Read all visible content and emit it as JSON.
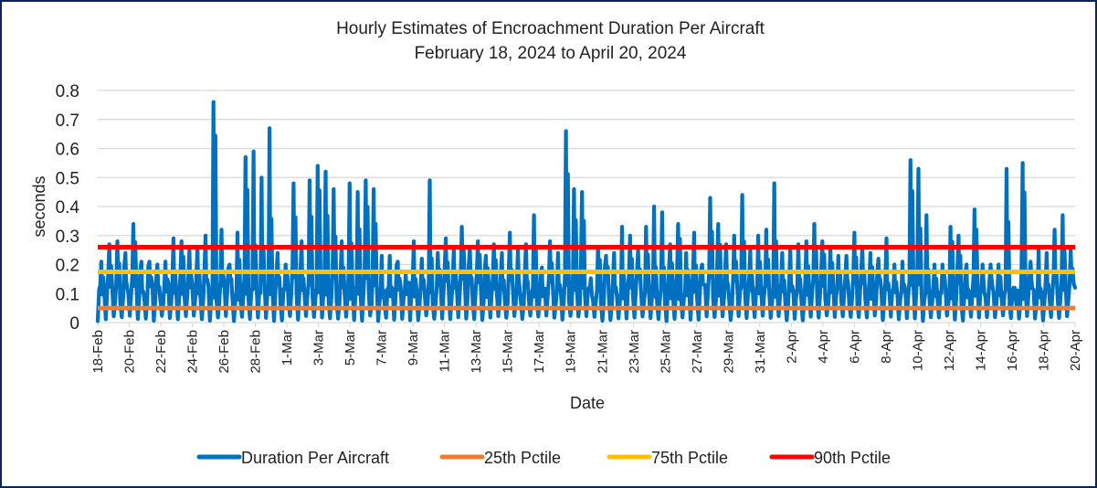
{
  "chart_data": {
    "type": "line",
    "title": "Hourly Estimates of Encroachment Duration Per Aircraft",
    "subtitle": "February 18, 2024 to April 20, 2024",
    "xlabel": "Date",
    "ylabel": "seconds",
    "ylim": [
      0,
      0.8
    ],
    "yticks": [
      "0",
      "0.1",
      "0.2",
      "0.3",
      "0.4",
      "0.5",
      "0.6",
      "0.7",
      "0.8"
    ],
    "xlim_days": [
      0,
      62
    ],
    "xticks": [
      {
        "day": 0,
        "label": "18-Feb"
      },
      {
        "day": 2,
        "label": "20-Feb"
      },
      {
        "day": 4,
        "label": "22-Feb"
      },
      {
        "day": 6,
        "label": "24-Feb"
      },
      {
        "day": 8,
        "label": "26-Feb"
      },
      {
        "day": 10,
        "label": "28-Feb"
      },
      {
        "day": 12,
        "label": "1-Mar"
      },
      {
        "day": 14,
        "label": "3-Mar"
      },
      {
        "day": 16,
        "label": "5-Mar"
      },
      {
        "day": 18,
        "label": "7-Mar"
      },
      {
        "day": 20,
        "label": "9-Mar"
      },
      {
        "day": 22,
        "label": "11-Mar"
      },
      {
        "day": 24,
        "label": "13-Mar"
      },
      {
        "day": 26,
        "label": "15-Mar"
      },
      {
        "day": 28,
        "label": "17-Mar"
      },
      {
        "day": 30,
        "label": "19-Mar"
      },
      {
        "day": 32,
        "label": "21-Mar"
      },
      {
        "day": 34,
        "label": "23-Mar"
      },
      {
        "day": 36,
        "label": "25-Mar"
      },
      {
        "day": 38,
        "label": "27-Mar"
      },
      {
        "day": 40,
        "label": "29-Mar"
      },
      {
        "day": 42,
        "label": "31-Mar"
      },
      {
        "day": 44,
        "label": "2-Apr"
      },
      {
        "day": 46,
        "label": "4-Apr"
      },
      {
        "day": 48,
        "label": "6-Apr"
      },
      {
        "day": 50,
        "label": "8-Apr"
      },
      {
        "day": 52,
        "label": "10-Apr"
      },
      {
        "day": 54,
        "label": "12-Apr"
      },
      {
        "day": 56,
        "label": "14-Apr"
      },
      {
        "day": 58,
        "label": "16-Apr"
      },
      {
        "day": 60,
        "label": "18-Apr"
      },
      {
        "day": 62,
        "label": "20-Apr"
      }
    ],
    "grid": true,
    "legend_position": "bottom",
    "series": [
      {
        "name": "Duration Per Aircraft",
        "color": "#0070c0",
        "note": "hourly values approximated as per-day peak/mid/trough profile read from chart",
        "daily_peaks": [
          0.21,
          0.27,
          0.28,
          0.24,
          0.34,
          0.21,
          0.21,
          0.2,
          0.21,
          0.29,
          0.28,
          0.25,
          0.26,
          0.3,
          0.76,
          0.32,
          0.2,
          0.31,
          0.57,
          0.59,
          0.5,
          0.67,
          0.24,
          0.2,
          0.48,
          0.28,
          0.49,
          0.54,
          0.52,
          0.46,
          0.28,
          0.48,
          0.45,
          0.49,
          0.46,
          0.23,
          0.23,
          0.21,
          0.17,
          0.28,
          0.22,
          0.49,
          0.24,
          0.29,
          0.25,
          0.33,
          0.26,
          0.28,
          0.23,
          0.27,
          0.24,
          0.31,
          0.25,
          0.27,
          0.37,
          0.19,
          0.28,
          0.24,
          0.66,
          0.46,
          0.45,
          0.12,
          0.26,
          0.23,
          0.24,
          0.33,
          0.3,
          0.25,
          0.33,
          0.4,
          0.38,
          0.27,
          0.34,
          0.24,
          0.31,
          0.2,
          0.43,
          0.34,
          0.27,
          0.3,
          0.44,
          0.25,
          0.3,
          0.32,
          0.48,
          0.24,
          0.26,
          0.27,
          0.28,
          0.34,
          0.28,
          0.26,
          0.23,
          0.23,
          0.31,
          0.26,
          0.24,
          0.22,
          0.29,
          0.2,
          0.21,
          0.56,
          0.53,
          0.37,
          0.2,
          0.2,
          0.33,
          0.3,
          0.2,
          0.39,
          0.2,
          0.2,
          0.2,
          0.53,
          0.12,
          0.55,
          0.21,
          0.25,
          0.24,
          0.32,
          0.37,
          0.25
        ]
      },
      {
        "name": "25th Pctile",
        "color": "#ed7d31",
        "value": 0.05
      },
      {
        "name": "75th Pctile",
        "color": "#ffc000",
        "value": 0.175
      },
      {
        "name": "90th Pctile",
        "color": "#ff0000",
        "value": 0.26
      }
    ]
  },
  "legend": [
    {
      "label": "Duration Per Aircraft",
      "color": "#0070c0"
    },
    {
      "label": "25th Pctile",
      "color": "#ed7d31"
    },
    {
      "label": "75th Pctile",
      "color": "#ffc000"
    },
    {
      "label": "90th Pctile",
      "color": "#ff0000"
    }
  ],
  "colors": {
    "frame_border": "#0b2559",
    "gridline": "#d9d9d9"
  }
}
